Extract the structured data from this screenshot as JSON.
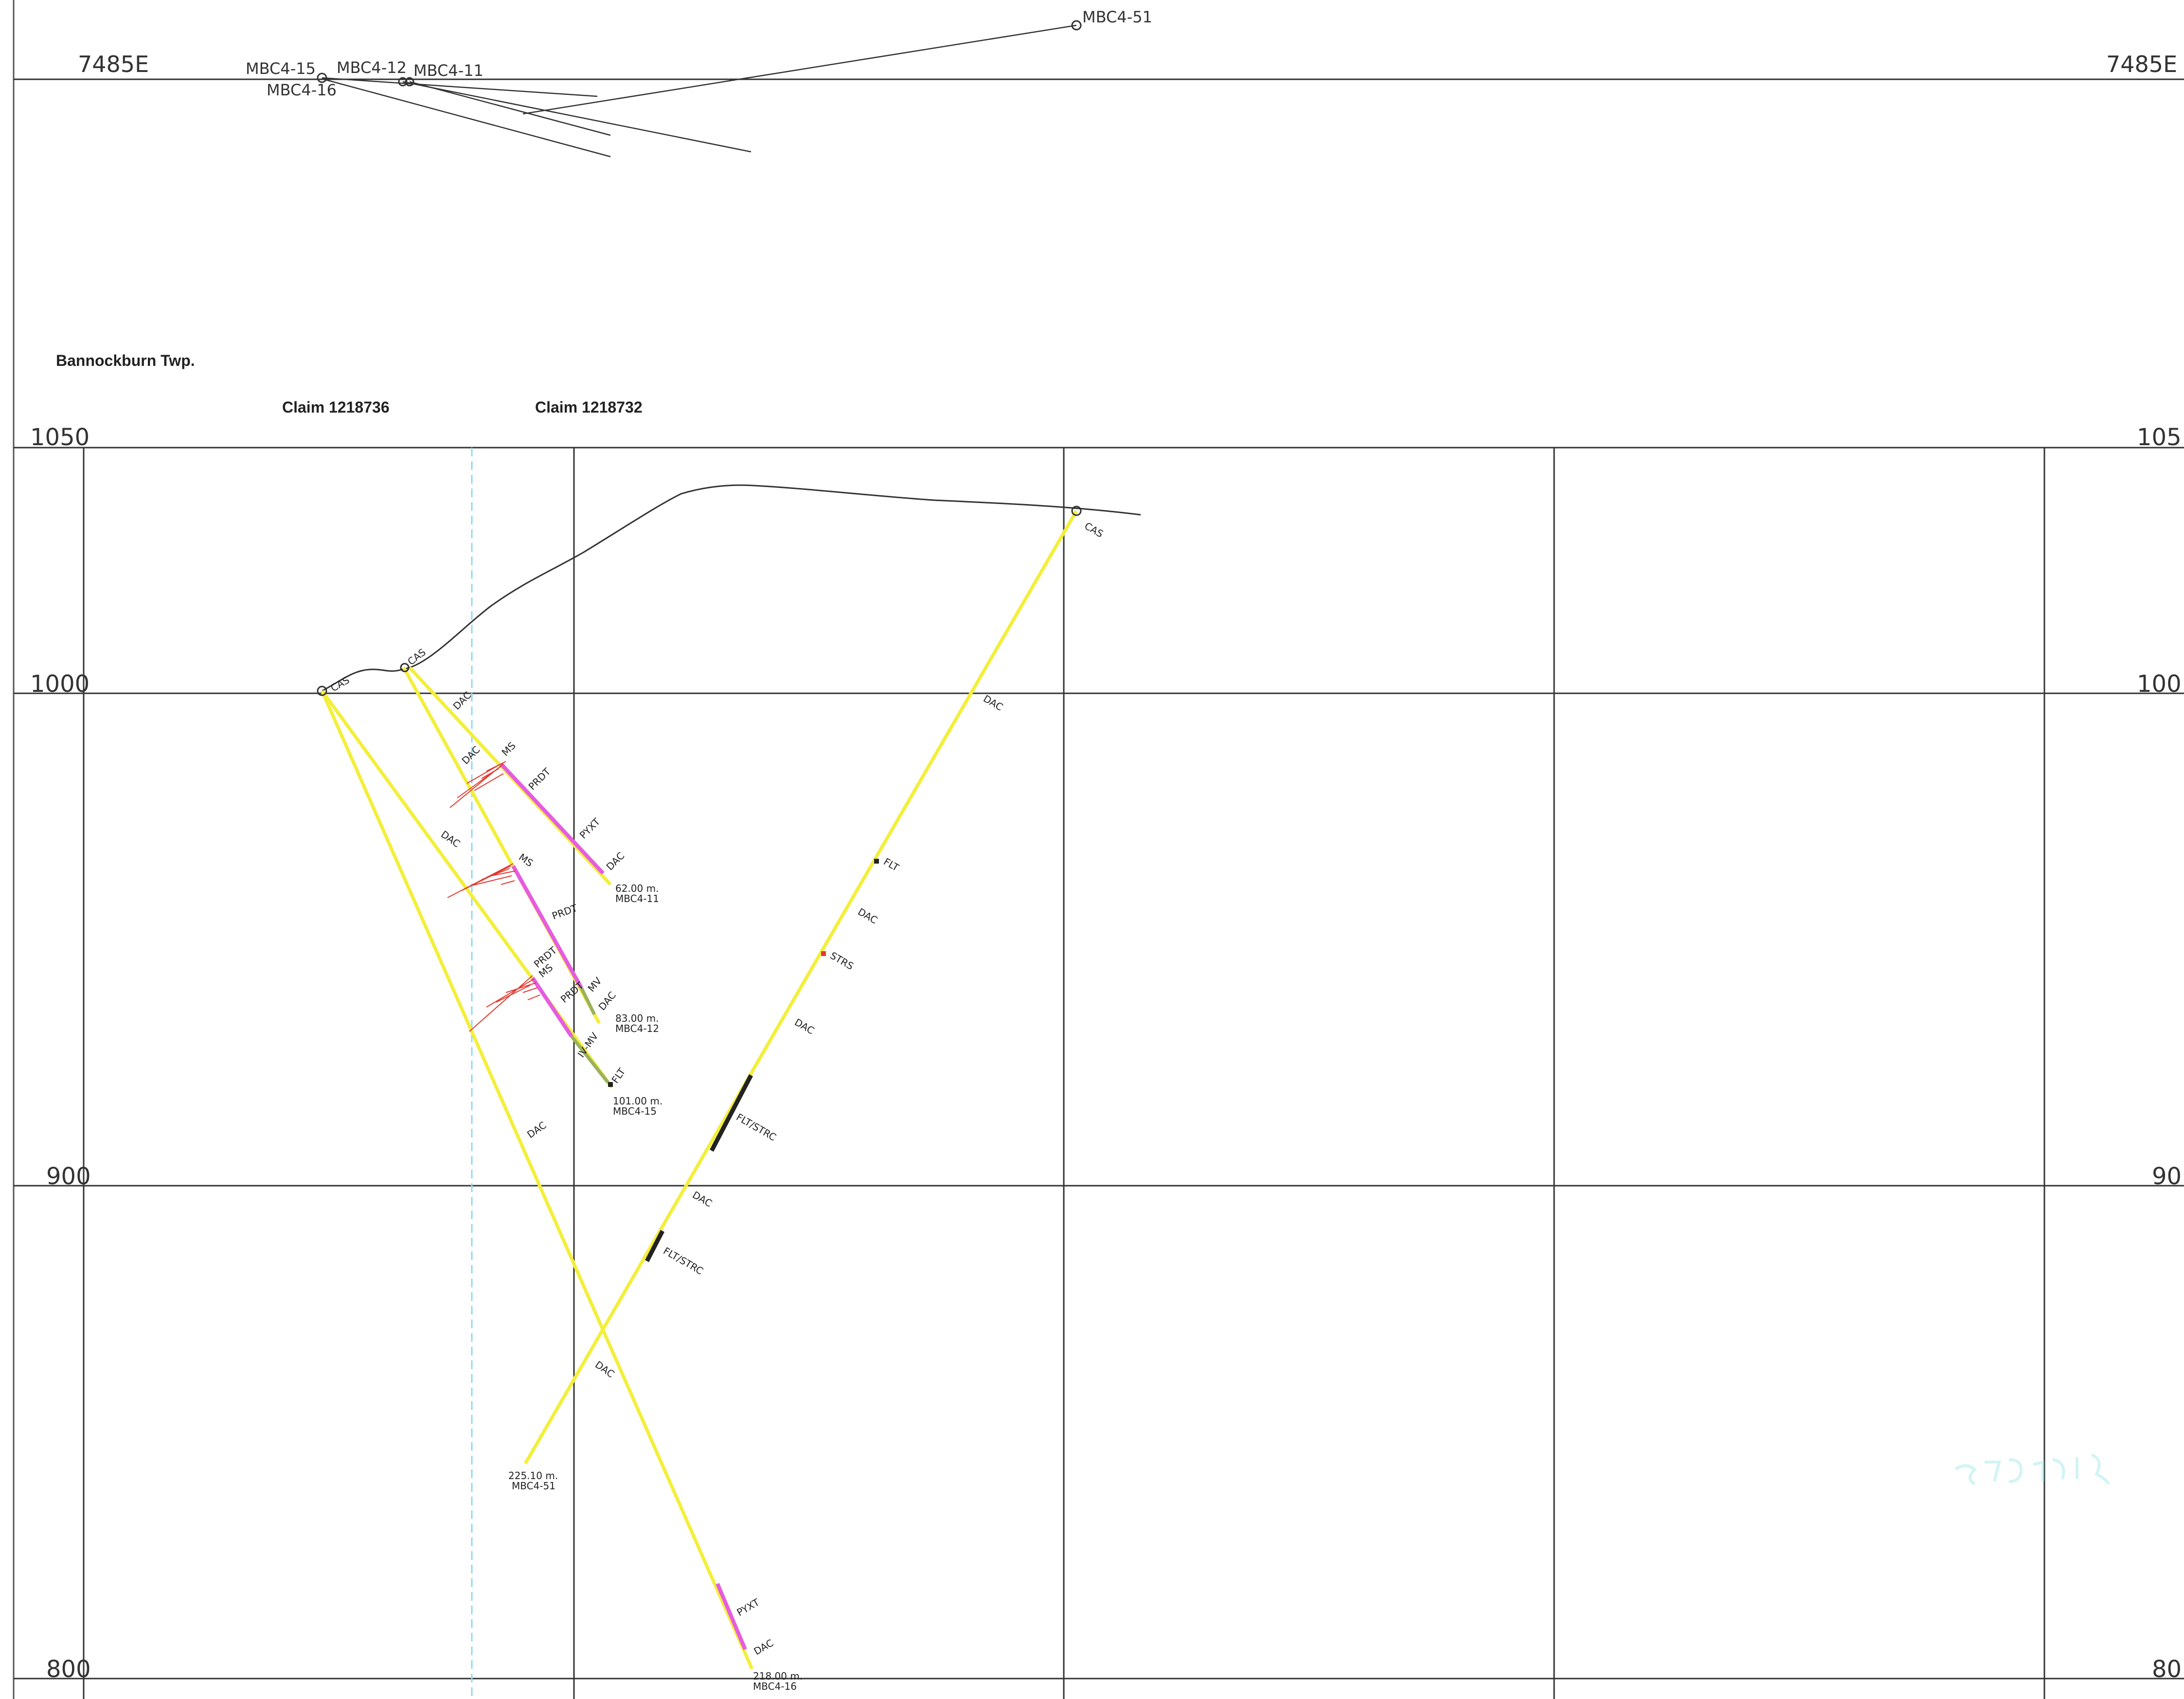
{
  "plan": {
    "easting_label_left": "7485E",
    "easting_label_right": "7485E",
    "collar_labels": [
      "MBC4-15",
      "MBC4-12",
      "MBC4-11",
      "MBC4-16",
      "MBC4-51"
    ]
  },
  "section": {
    "township": "Bannockburn Twp.",
    "claims": [
      "Claim 1218736",
      "Claim 1218732"
    ],
    "elevation_labels_left": [
      "1050",
      "1000",
      "900",
      "800"
    ],
    "elevation_labels_right": [
      "105",
      "100",
      "90",
      "80"
    ]
  },
  "holes": [
    {
      "id": "MBC4-11",
      "depth": "62.00  m.",
      "name": "MBC4-11"
    },
    {
      "id": "MBC4-12",
      "depth": "83.00  m.",
      "name": "MBC4-12"
    },
    {
      "id": "MBC4-15",
      "depth": "101.00  m.",
      "name": "MBC4-15"
    },
    {
      "id": "MBC4-51",
      "depth": "225.10  m.",
      "name": "MBC4-51"
    },
    {
      "id": "MBC4-16",
      "depth": "218.00  m.",
      "name": "MBC4-16"
    }
  ],
  "lithology_codes": {
    "cas": "CAS",
    "dac": "DAC",
    "ms": "MS",
    "prdt": "PRDT",
    "pyxt": "PYXT",
    "mv": "MV",
    "ivmv": "IV-MV",
    "flt": "FLT",
    "strs": "STRS",
    "fltstrc": "FLT/STRC"
  },
  "colors": {
    "dacite": "#f3ef3a",
    "sulphide_zone": "#e65ce0",
    "mafic": "#9ab25a",
    "fault": "#222222",
    "assay": "#e23a30",
    "claim_boundary": "#8fd8f0"
  }
}
